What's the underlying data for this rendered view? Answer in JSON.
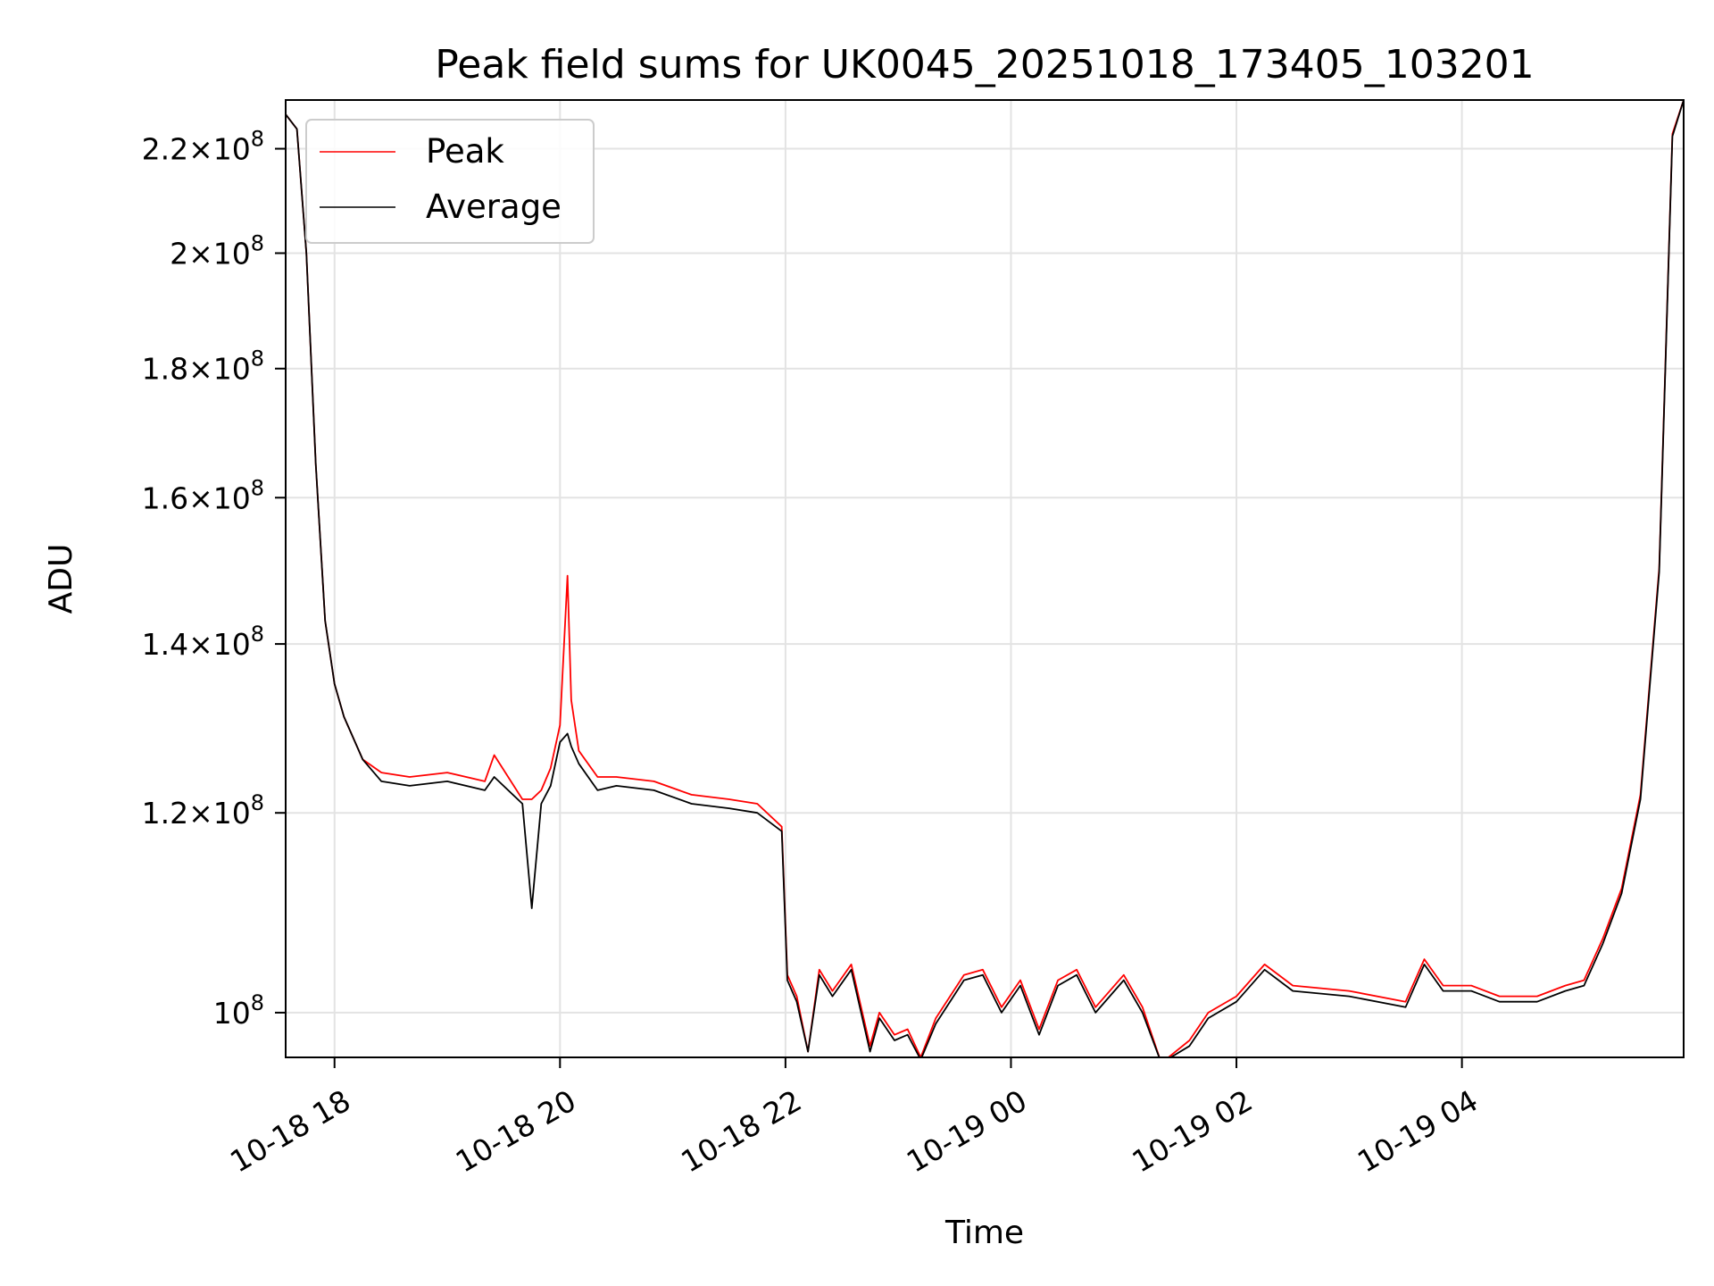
{
  "chart_data": {
    "type": "line",
    "title": "Peak field sums for UK0045_20251018_173405_103201",
    "xlabel": "Time",
    "ylabel": "ADU",
    "y_scale": "log",
    "xlim": [
      "2025-10-18 17:34",
      "2025-10-19 05:58"
    ],
    "ylim": [
      96000000,
      230000000
    ],
    "grid": true,
    "legend_position": "top-left",
    "x_ticks": [
      {
        "value": "2025-10-18 18:00",
        "label": "10-18 18"
      },
      {
        "value": "2025-10-18 20:00",
        "label": "10-18 20"
      },
      {
        "value": "2025-10-18 22:00",
        "label": "10-18 22"
      },
      {
        "value": "2025-10-19 00:00",
        "label": "10-19 00"
      },
      {
        "value": "2025-10-19 02:00",
        "label": "10-19 02"
      },
      {
        "value": "2025-10-19 04:00",
        "label": "10-19 04"
      }
    ],
    "y_ticks": [
      {
        "value": 100000000,
        "mantissa": "",
        "exponent": "8"
      },
      {
        "value": 120000000,
        "mantissa": "1.2",
        "exponent": "8"
      },
      {
        "value": 140000000,
        "mantissa": "1.4",
        "exponent": "8"
      },
      {
        "value": 160000000,
        "mantissa": "1.6",
        "exponent": "8"
      },
      {
        "value": 180000000,
        "mantissa": "1.8",
        "exponent": "8"
      },
      {
        "value": 200000000,
        "mantissa": "2",
        "exponent": "8"
      },
      {
        "value": 220000000,
        "mantissa": "2.2",
        "exponent": "8"
      }
    ],
    "series": [
      {
        "name": "Peak",
        "color": "#ff0000",
        "x": [
          "2025-10-18 17:34",
          "2025-10-18 17:40",
          "2025-10-18 17:45",
          "2025-10-18 17:50",
          "2025-10-18 17:55",
          "2025-10-18 18:00",
          "2025-10-18 18:05",
          "2025-10-18 18:15",
          "2025-10-18 18:25",
          "2025-10-18 18:40",
          "2025-10-18 19:00",
          "2025-10-18 19:20",
          "2025-10-18 19:25",
          "2025-10-18 19:40",
          "2025-10-18 19:45",
          "2025-10-18 19:50",
          "2025-10-18 19:55",
          "2025-10-18 20:00",
          "2025-10-18 20:04",
          "2025-10-18 20:06",
          "2025-10-18 20:10",
          "2025-10-18 20:20",
          "2025-10-18 20:30",
          "2025-10-18 20:50",
          "2025-10-18 21:10",
          "2025-10-18 21:30",
          "2025-10-18 21:45",
          "2025-10-18 21:58",
          "2025-10-18 22:01",
          "2025-10-18 22:06",
          "2025-10-18 22:12",
          "2025-10-18 22:18",
          "2025-10-18 22:25",
          "2025-10-18 22:35",
          "2025-10-18 22:45",
          "2025-10-18 22:50",
          "2025-10-18 22:58",
          "2025-10-18 23:05",
          "2025-10-18 23:12",
          "2025-10-18 23:20",
          "2025-10-18 23:35",
          "2025-10-18 23:45",
          "2025-10-18 23:55",
          "2025-10-19 00:05",
          "2025-10-19 00:15",
          "2025-10-19 00:25",
          "2025-10-19 00:35",
          "2025-10-19 00:45",
          "2025-10-19 01:00",
          "2025-10-19 01:10",
          "2025-10-19 01:20",
          "2025-10-19 01:35",
          "2025-10-19 01:45",
          "2025-10-19 02:00",
          "2025-10-19 02:15",
          "2025-10-19 02:30",
          "2025-10-19 03:00",
          "2025-10-19 03:30",
          "2025-10-19 03:40",
          "2025-10-19 03:50",
          "2025-10-19 04:05",
          "2025-10-19 04:20",
          "2025-10-19 04:40",
          "2025-10-19 04:55",
          "2025-10-19 05:05",
          "2025-10-19 05:15",
          "2025-10-19 05:25",
          "2025-10-19 05:35",
          "2025-10-19 05:45",
          "2025-10-19 05:52",
          "2025-10-19 05:58"
        ],
        "y": [
          227000000,
          224000000,
          200000000,
          165000000,
          143000000,
          135000000,
          131000000,
          126000000,
          124500000,
          124000000,
          124500000,
          123500000,
          126500000,
          121500000,
          121500000,
          122500000,
          125000000,
          130000000,
          149000000,
          133000000,
          127000000,
          124000000,
          124000000,
          123500000,
          122000000,
          121500000,
          121000000,
          118500000,
          103500000,
          101500000,
          96500000,
          104000000,
          102000000,
          104500000,
          97000000,
          100000000,
          98000000,
          98500000,
          96000000,
          99500000,
          103500000,
          104000000,
          100500000,
          103000000,
          98500000,
          103000000,
          104000000,
          100500000,
          103500000,
          100500000,
          95500000,
          97500000,
          100000000,
          101500000,
          104500000,
          102500000,
          102000000,
          101000000,
          105000000,
          102500000,
          102500000,
          101500000,
          101500000,
          102500000,
          103000000,
          107000000,
          112000000,
          122000000,
          150000000,
          223000000,
          230000000
        ]
      },
      {
        "name": "Average",
        "color": "#000000",
        "x": [
          "2025-10-18 17:34",
          "2025-10-18 17:40",
          "2025-10-18 17:45",
          "2025-10-18 17:50",
          "2025-10-18 17:55",
          "2025-10-18 18:00",
          "2025-10-18 18:05",
          "2025-10-18 18:15",
          "2025-10-18 18:25",
          "2025-10-18 18:40",
          "2025-10-18 19:00",
          "2025-10-18 19:20",
          "2025-10-18 19:25",
          "2025-10-18 19:40",
          "2025-10-18 19:45",
          "2025-10-18 19:50",
          "2025-10-18 19:55",
          "2025-10-18 20:00",
          "2025-10-18 20:04",
          "2025-10-18 20:06",
          "2025-10-18 20:10",
          "2025-10-18 20:20",
          "2025-10-18 20:30",
          "2025-10-18 20:50",
          "2025-10-18 21:10",
          "2025-10-18 21:30",
          "2025-10-18 21:45",
          "2025-10-18 21:58",
          "2025-10-18 22:01",
          "2025-10-18 22:06",
          "2025-10-18 22:12",
          "2025-10-18 22:18",
          "2025-10-18 22:25",
          "2025-10-18 22:35",
          "2025-10-18 22:45",
          "2025-10-18 22:50",
          "2025-10-18 22:58",
          "2025-10-18 23:05",
          "2025-10-18 23:12",
          "2025-10-18 23:20",
          "2025-10-18 23:35",
          "2025-10-18 23:45",
          "2025-10-18 23:55",
          "2025-10-19 00:05",
          "2025-10-19 00:15",
          "2025-10-19 00:25",
          "2025-10-19 00:35",
          "2025-10-19 00:45",
          "2025-10-19 01:00",
          "2025-10-19 01:10",
          "2025-10-19 01:20",
          "2025-10-19 01:35",
          "2025-10-19 01:45",
          "2025-10-19 02:00",
          "2025-10-19 02:15",
          "2025-10-19 02:30",
          "2025-10-19 03:00",
          "2025-10-19 03:30",
          "2025-10-19 03:40",
          "2025-10-19 03:50",
          "2025-10-19 04:05",
          "2025-10-19 04:20",
          "2025-10-19 04:40",
          "2025-10-19 04:55",
          "2025-10-19 05:05",
          "2025-10-19 05:15",
          "2025-10-19 05:25",
          "2025-10-19 05:35",
          "2025-10-19 05:45",
          "2025-10-19 05:52",
          "2025-10-19 05:58"
        ],
        "y": [
          227000000,
          224000000,
          200000000,
          165000000,
          143000000,
          135000000,
          131000000,
          126000000,
          123500000,
          123000000,
          123500000,
          122500000,
          124000000,
          121000000,
          110000000,
          121000000,
          123000000,
          128000000,
          129000000,
          127500000,
          125500000,
          122500000,
          123000000,
          122500000,
          121000000,
          120500000,
          120000000,
          118000000,
          103000000,
          101000000,
          96500000,
          103500000,
          101500000,
          104000000,
          96500000,
          99500000,
          97500000,
          98000000,
          95800000,
          99000000,
          103000000,
          103500000,
          100000000,
          102500000,
          98000000,
          102500000,
          103500000,
          100000000,
          103000000,
          100000000,
          95500000,
          97000000,
          99500000,
          101000000,
          104000000,
          102000000,
          101500000,
          100500000,
          104500000,
          102000000,
          102000000,
          101000000,
          101000000,
          102000000,
          102500000,
          106500000,
          111500000,
          121500000,
          149500000,
          222500000,
          230000000
        ]
      }
    ]
  }
}
